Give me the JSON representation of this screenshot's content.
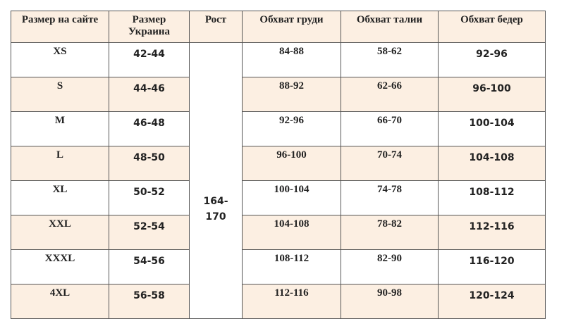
{
  "headers": [
    "Размер на сайте",
    "Размер Украина",
    "Рост",
    "Обхват груди",
    "Обхват талии",
    "Обхват бедер"
  ],
  "height_value": "164-170",
  "rows": [
    {
      "site": "XS",
      "ukraine": "42-44",
      "chest": "84-88",
      "waist": "58-62",
      "hips": "92-96"
    },
    {
      "site": "S",
      "ukraine": "44-46",
      "chest": "88-92",
      "waist": "62-66",
      "hips": "96-100"
    },
    {
      "site": "M",
      "ukraine": "46-48",
      "chest": "92-96",
      "waist": "66-70",
      "hips": "100-104"
    },
    {
      "site": "L",
      "ukraine": "48-50",
      "chest": "96-100",
      "waist": "70-74",
      "hips": "104-108"
    },
    {
      "site": "XL",
      "ukraine": "50-52",
      "chest": "100-104",
      "waist": "74-78",
      "hips": "108-112"
    },
    {
      "site": "XXL",
      "ukraine": "52-54",
      "chest": "104-108",
      "waist": "78-82",
      "hips": "112-116"
    },
    {
      "site": "XXXL",
      "ukraine": "54-56",
      "chest": "108-112",
      "waist": "82-90",
      "hips": "116-120"
    },
    {
      "site": "4XL",
      "ukraine": "56-58",
      "chest": "112-116",
      "waist": "90-98",
      "hips": "120-124"
    }
  ],
  "colors": {
    "shade": "#fcefe2",
    "border": "#555555"
  }
}
